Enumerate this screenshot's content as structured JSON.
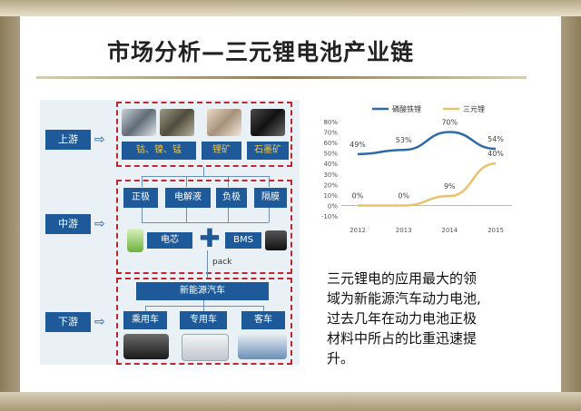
{
  "slide": {
    "title": "市场分析—三元锂电池产业链",
    "description_lines": [
      "三元锂电的应用最大的领",
      "域为新能源汽车动力电池,",
      "过去几年在动力电池正极",
      "材料中所占的比重迅速提",
      "升。"
    ]
  },
  "supply_chain": {
    "upstream": {
      "label": "上游",
      "materials": [
        "钴、镍、锰",
        "锂矿",
        "石墨矿"
      ]
    },
    "midstream": {
      "label": "中游",
      "components": [
        "正极",
        "电解液",
        "负极",
        "隔膜"
      ],
      "cell": "电芯",
      "bms": "BMS",
      "pack": "pack"
    },
    "downstream": {
      "label": "下游",
      "main": "新能源汽车",
      "vehicles": [
        "乘用车",
        "专用车",
        "客车"
      ]
    },
    "colors": {
      "box": "#1e5a99",
      "dash": "#c0272d",
      "mineral_text": "#f3c64a"
    }
  },
  "chart_data": {
    "type": "line",
    "x": [
      "2012",
      "2013",
      "2014",
      "2015"
    ],
    "series": [
      {
        "name": "磷酸铁锂",
        "values": [
          49,
          53,
          70,
          54
        ],
        "labels": [
          "49%",
          "53%",
          "70%",
          "54%"
        ],
        "color": "#2e6aa8"
      },
      {
        "name": "三元锂",
        "values": [
          0,
          0,
          9,
          40
        ],
        "labels": [
          "0%",
          "0%",
          "9%",
          "40%"
        ],
        "color": "#e8c36a"
      }
    ],
    "ylim": [
      -10,
      80
    ],
    "yticks": [
      "-10%",
      "0%",
      "10%",
      "20%",
      "30%",
      "40%",
      "50%",
      "60%",
      "70%",
      "80%"
    ],
    "ytick_values": [
      -10,
      0,
      10,
      20,
      30,
      40,
      50,
      60,
      70,
      80
    ],
    "legend_position": "top",
    "grid": false
  }
}
